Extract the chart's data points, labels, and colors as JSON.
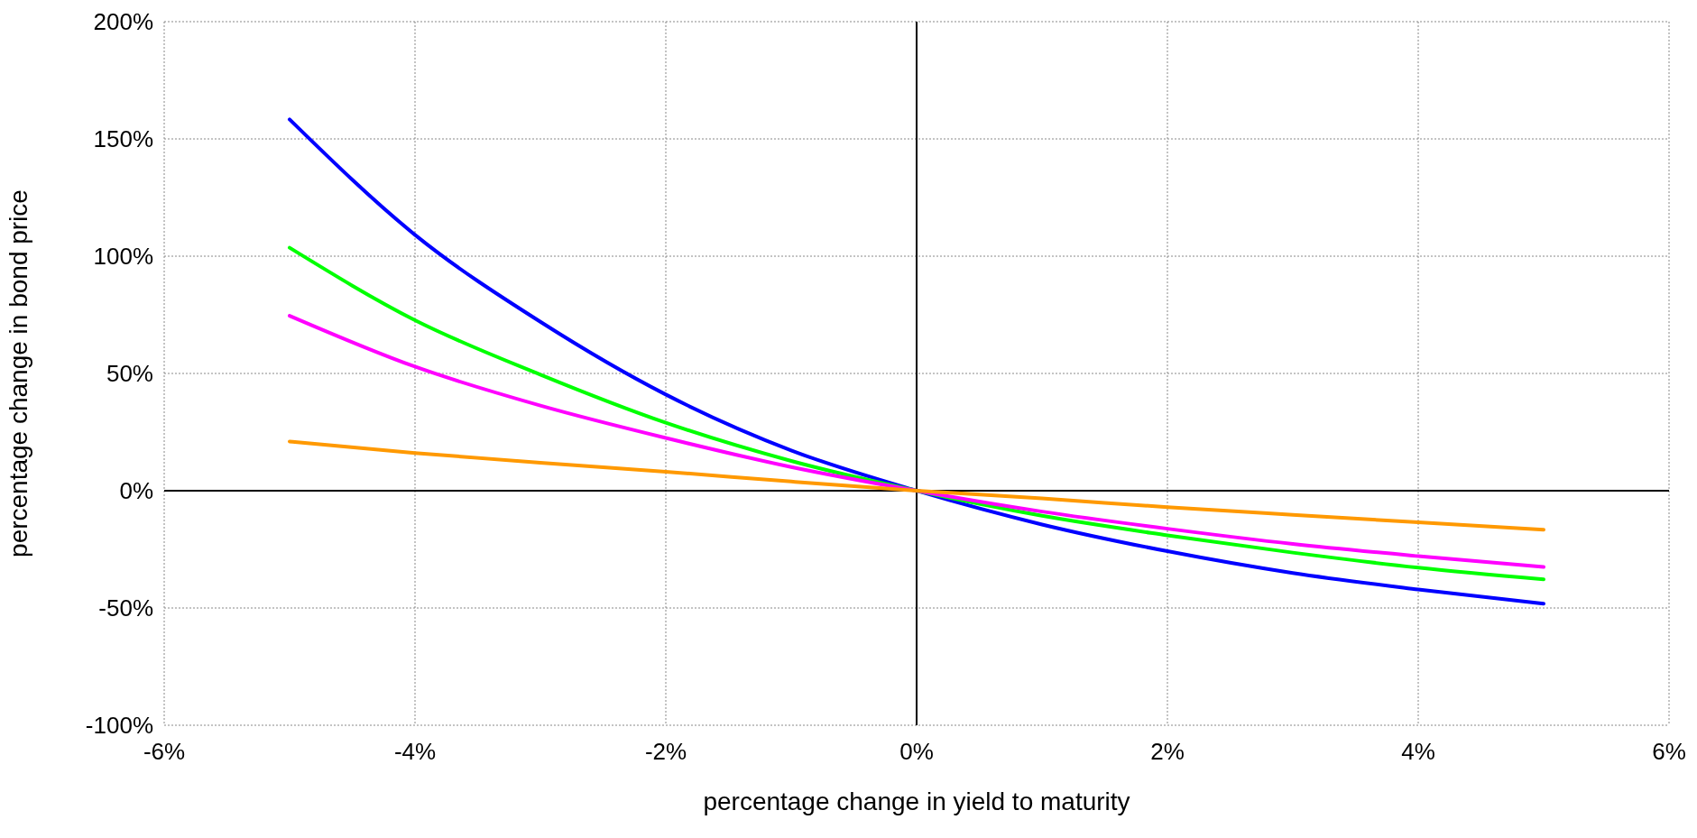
{
  "chart_data": {
    "type": "line",
    "xlabel": "percentage change in yield to maturity",
    "ylabel": "percentage change in bond price",
    "x": [
      -5,
      -4,
      -3,
      -2,
      -1,
      0,
      1,
      2,
      3,
      4,
      5
    ],
    "series": [
      {
        "color": "#0000ff",
        "values": [
          158.3,
          109.1,
          72.0,
          41.0,
          17.2,
          0,
          -14.4,
          -25.8,
          -35.1,
          -42.1,
          -48.2
        ]
      },
      {
        "color": "#00ff00",
        "values": [
          103.6,
          72.7,
          49.5,
          29.0,
          12.7,
          0,
          -10.7,
          -19.0,
          -26.4,
          -32.8,
          -37.8
        ]
      },
      {
        "color": "#ff00ff",
        "values": [
          74.6,
          52.9,
          36.3,
          22.5,
          10.1,
          0,
          -8.9,
          -16.2,
          -22.7,
          -27.9,
          -32.5
        ]
      },
      {
        "color": "#ff9900",
        "values": [
          21.0,
          16.1,
          11.9,
          8.1,
          3.9,
          0,
          -3.3,
          -7.0,
          -10.3,
          -13.5,
          -16.6
        ]
      }
    ],
    "xlim": [
      -6,
      6
    ],
    "xticks": [
      {
        "value": -6,
        "label": "-6%"
      },
      {
        "value": -4,
        "label": "-4%"
      },
      {
        "value": -2,
        "label": "-2%"
      },
      {
        "value": 0,
        "label": "0%"
      },
      {
        "value": 2,
        "label": "2%"
      },
      {
        "value": 4,
        "label": "4%"
      },
      {
        "value": 6,
        "label": "6%"
      }
    ],
    "ylim": [
      -100,
      200
    ],
    "yticks": [
      {
        "value": -100,
        "label": "-100%"
      },
      {
        "value": -50,
        "label": "-50%"
      },
      {
        "value": 0,
        "label": "0%"
      },
      {
        "value": 50,
        "label": "50%"
      },
      {
        "value": 100,
        "label": "100%"
      },
      {
        "value": 150,
        "label": "150%"
      },
      {
        "value": 200,
        "label": "200%"
      }
    ],
    "grid": true,
    "legend": false,
    "marker": "none",
    "line_style": "solid"
  }
}
